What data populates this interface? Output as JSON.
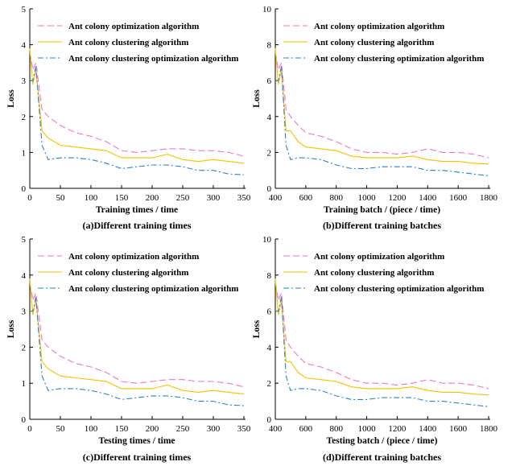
{
  "chart_data": [
    {
      "type": "line",
      "caption": "(a)Different training times",
      "xlabel": "Training times / time",
      "ylabel": "Loss",
      "xlim": [
        0,
        350
      ],
      "ylim": [
        0,
        5
      ],
      "xticks": [
        0,
        50,
        100,
        150,
        200,
        250,
        300,
        350
      ],
      "yticks": [
        0,
        1,
        2,
        3,
        4,
        5
      ],
      "legend": "top-right",
      "x": [
        0,
        5,
        10,
        20,
        30,
        50,
        75,
        100,
        125,
        150,
        175,
        200,
        225,
        250,
        275,
        300,
        325,
        350
      ],
      "series": [
        {
          "name": "Ant colony optimization algorithm",
          "color": "#e879c9",
          "values": [
            3.8,
            3.3,
            3.5,
            2.2,
            2.0,
            1.75,
            1.55,
            1.45,
            1.3,
            1.05,
            1.0,
            1.05,
            1.1,
            1.1,
            1.05,
            1.05,
            1.0,
            0.9
          ]
        },
        {
          "name": "Ant colony clustering algorithm",
          "color": "#f2c200",
          "values": [
            3.9,
            2.9,
            3.3,
            1.6,
            1.4,
            1.2,
            1.15,
            1.1,
            1.05,
            0.85,
            0.85,
            0.85,
            0.95,
            0.8,
            0.75,
            0.8,
            0.75,
            0.7
          ]
        },
        {
          "name": "Ant colony clustering optimization algorithm",
          "color": "#2e7fc9",
          "values": [
            3.0,
            3.0,
            3.4,
            1.2,
            0.8,
            0.85,
            0.85,
            0.8,
            0.7,
            0.55,
            0.6,
            0.65,
            0.65,
            0.6,
            0.5,
            0.5,
            0.4,
            0.38
          ]
        }
      ]
    },
    {
      "type": "line",
      "caption": "(b)Different training batches",
      "xlabel": "Training batch / (piece / time)",
      "ylabel": "Loss",
      "xlim": [
        400,
        1800
      ],
      "ylim": [
        0,
        10
      ],
      "xticks": [
        400,
        600,
        800,
        1000,
        1200,
        1400,
        1600,
        1800
      ],
      "yticks": [
        0,
        2,
        4,
        6,
        8,
        10
      ],
      "legend": "top-right",
      "x": [
        400,
        420,
        440,
        470,
        500,
        550,
        600,
        700,
        800,
        900,
        1000,
        1100,
        1200,
        1300,
        1400,
        1500,
        1600,
        1700,
        1800
      ],
      "series": [
        {
          "name": "Ant colony optimization algorithm",
          "color": "#e879c9",
          "values": [
            7.6,
            6.6,
            7.0,
            4.4,
            4.0,
            3.5,
            3.1,
            2.9,
            2.6,
            2.2,
            2.0,
            2.0,
            1.9,
            2.0,
            2.2,
            2.0,
            2.0,
            1.9,
            1.7
          ]
        },
        {
          "name": "Ant colony clustering algorithm",
          "color": "#f2c200",
          "values": [
            7.8,
            5.8,
            6.6,
            3.2,
            3.2,
            2.6,
            2.3,
            2.2,
            2.1,
            1.8,
            1.7,
            1.7,
            1.7,
            1.8,
            1.6,
            1.5,
            1.5,
            1.4,
            1.35
          ]
        },
        {
          "name": "Ant colony clustering optimization algorithm",
          "color": "#2e7fc9",
          "values": [
            6.0,
            6.0,
            6.8,
            2.4,
            1.6,
            1.7,
            1.7,
            1.6,
            1.3,
            1.1,
            1.1,
            1.2,
            1.2,
            1.2,
            1.0,
            1.0,
            0.9,
            0.8,
            0.7
          ]
        }
      ]
    },
    {
      "type": "line",
      "caption": "(c)Different training times",
      "xlabel": "Testing times / time",
      "ylabel": "Loss",
      "xlim": [
        0,
        350
      ],
      "ylim": [
        0,
        5
      ],
      "xticks": [
        0,
        50,
        100,
        150,
        200,
        250,
        300,
        350
      ],
      "yticks": [
        0,
        1,
        2,
        3,
        4,
        5
      ],
      "legend": "top-right",
      "x": [
        0,
        5,
        10,
        20,
        30,
        50,
        75,
        100,
        125,
        150,
        175,
        200,
        225,
        250,
        275,
        300,
        325,
        350
      ],
      "series": [
        {
          "name": "Ant colony optimization algorithm",
          "color": "#e879c9",
          "values": [
            3.8,
            3.3,
            3.5,
            2.2,
            2.0,
            1.75,
            1.55,
            1.45,
            1.3,
            1.05,
            1.0,
            1.05,
            1.1,
            1.1,
            1.05,
            1.05,
            1.0,
            0.9
          ]
        },
        {
          "name": "Ant colony clustering algorithm",
          "color": "#f2c200",
          "values": [
            3.9,
            2.9,
            3.3,
            1.6,
            1.4,
            1.2,
            1.15,
            1.1,
            1.05,
            0.85,
            0.85,
            0.85,
            0.95,
            0.8,
            0.75,
            0.8,
            0.75,
            0.7
          ]
        },
        {
          "name": "Ant colony clustering optimization algorithm",
          "color": "#2e7fc9",
          "values": [
            3.0,
            3.0,
            3.4,
            1.2,
            0.8,
            0.85,
            0.85,
            0.8,
            0.7,
            0.55,
            0.6,
            0.65,
            0.65,
            0.6,
            0.5,
            0.5,
            0.4,
            0.38
          ]
        }
      ]
    },
    {
      "type": "line",
      "caption": "(d)Different training batches",
      "xlabel": "Testing batch / (piece / time)",
      "ylabel": "Loss",
      "xlim": [
        400,
        1800
      ],
      "ylim": [
        0,
        10
      ],
      "xticks": [
        400,
        600,
        800,
        1000,
        1200,
        1400,
        1600,
        1800
      ],
      "yticks": [
        0,
        2,
        4,
        6,
        8,
        10
      ],
      "legend": "top-right",
      "x": [
        400,
        420,
        440,
        470,
        500,
        550,
        600,
        700,
        800,
        900,
        1000,
        1100,
        1200,
        1300,
        1400,
        1500,
        1600,
        1700,
        1800
      ],
      "series": [
        {
          "name": "Ant colony optimization algorithm",
          "color": "#e879c9",
          "values": [
            7.6,
            6.6,
            7.0,
            4.4,
            4.0,
            3.5,
            3.1,
            2.9,
            2.6,
            2.2,
            2.0,
            2.0,
            1.9,
            2.0,
            2.2,
            2.0,
            2.0,
            1.9,
            1.7
          ]
        },
        {
          "name": "Ant colony clustering algorithm",
          "color": "#f2c200",
          "values": [
            7.8,
            5.8,
            6.6,
            3.2,
            3.2,
            2.6,
            2.3,
            2.2,
            2.1,
            1.8,
            1.7,
            1.7,
            1.7,
            1.8,
            1.6,
            1.5,
            1.5,
            1.4,
            1.35
          ]
        },
        {
          "name": "Ant colony clustering optimization algorithm",
          "color": "#2e7fc9",
          "values": [
            6.0,
            6.0,
            6.8,
            2.4,
            1.6,
            1.7,
            1.7,
            1.6,
            1.3,
            1.1,
            1.1,
            1.2,
            1.2,
            1.2,
            1.0,
            1.0,
            0.9,
            0.8,
            0.7
          ]
        }
      ]
    }
  ]
}
